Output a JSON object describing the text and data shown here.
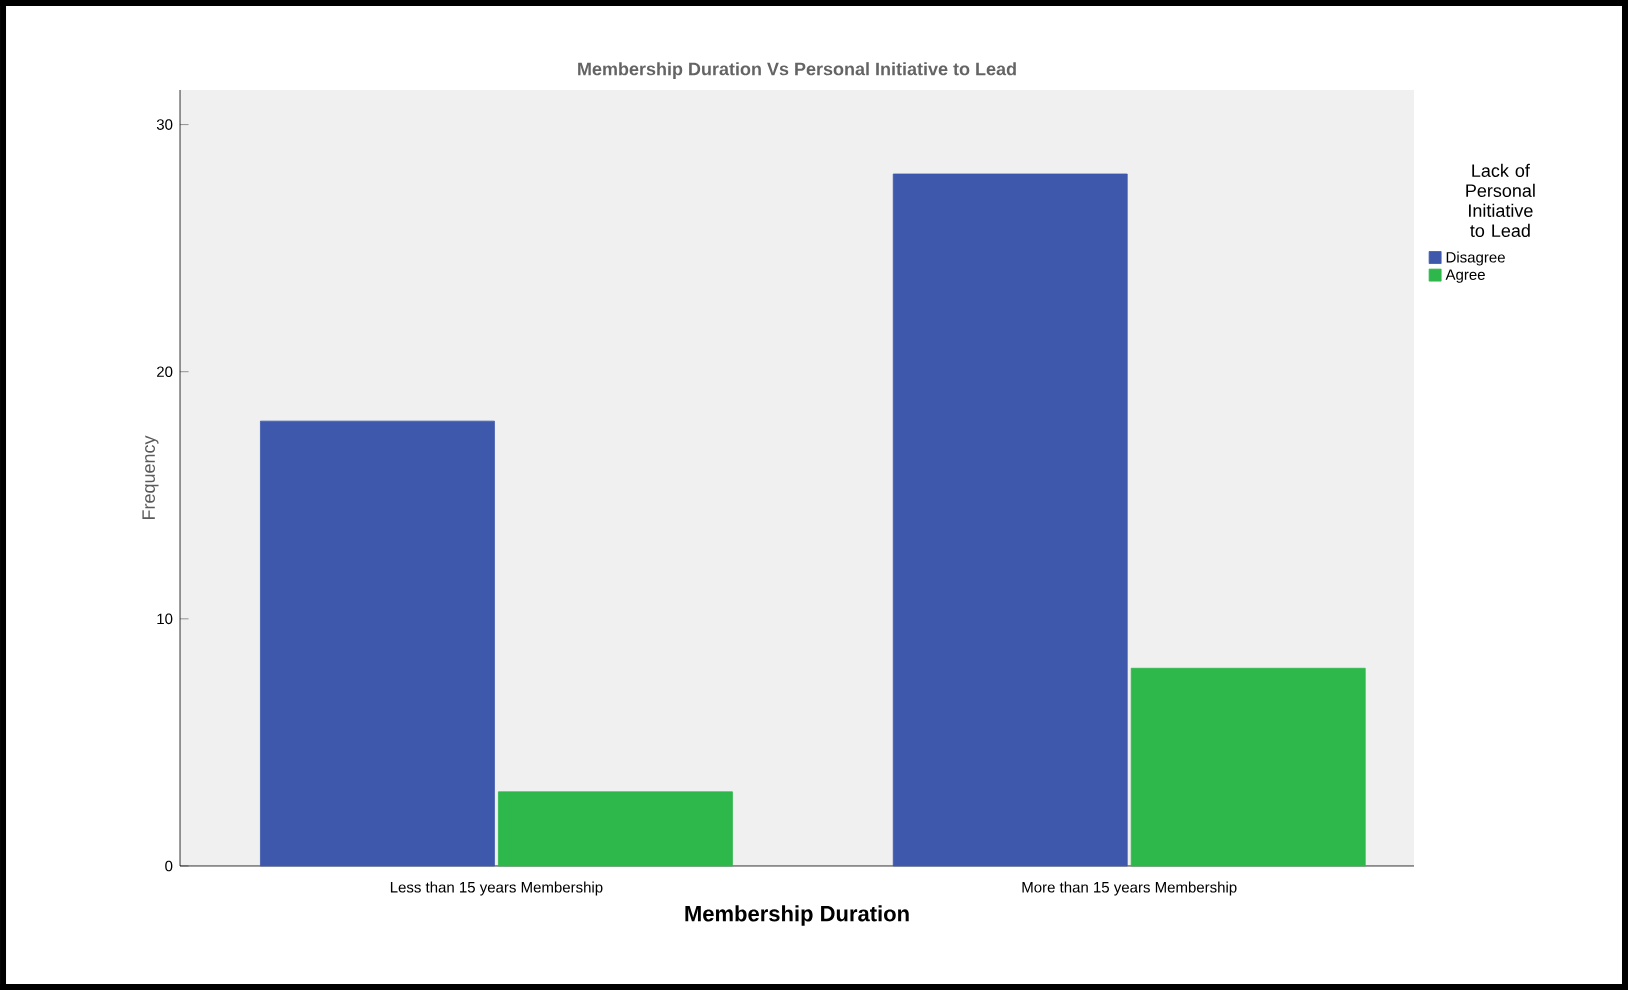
{
  "chart_data": {
    "type": "bar",
    "title": "Membership Duration Vs Personal Initiative to Lead",
    "xlabel": "Membership Duration",
    "ylabel": "Frequency",
    "legend_title": "Lack of Personal Initiative to Lead",
    "categories": [
      "Less than 15 years Membership",
      "More than 15 years Membership"
    ],
    "series": [
      {
        "name": "Disagree",
        "color": "#3e58ac",
        "values": [
          18,
          28
        ]
      },
      {
        "name": "Agree",
        "color": "#2eb84b",
        "values": [
          3,
          8
        ]
      }
    ],
    "ylim": [
      0,
      31.4
    ],
    "yticks": [
      0,
      10,
      20,
      30
    ],
    "grid": false,
    "legend": "right"
  }
}
